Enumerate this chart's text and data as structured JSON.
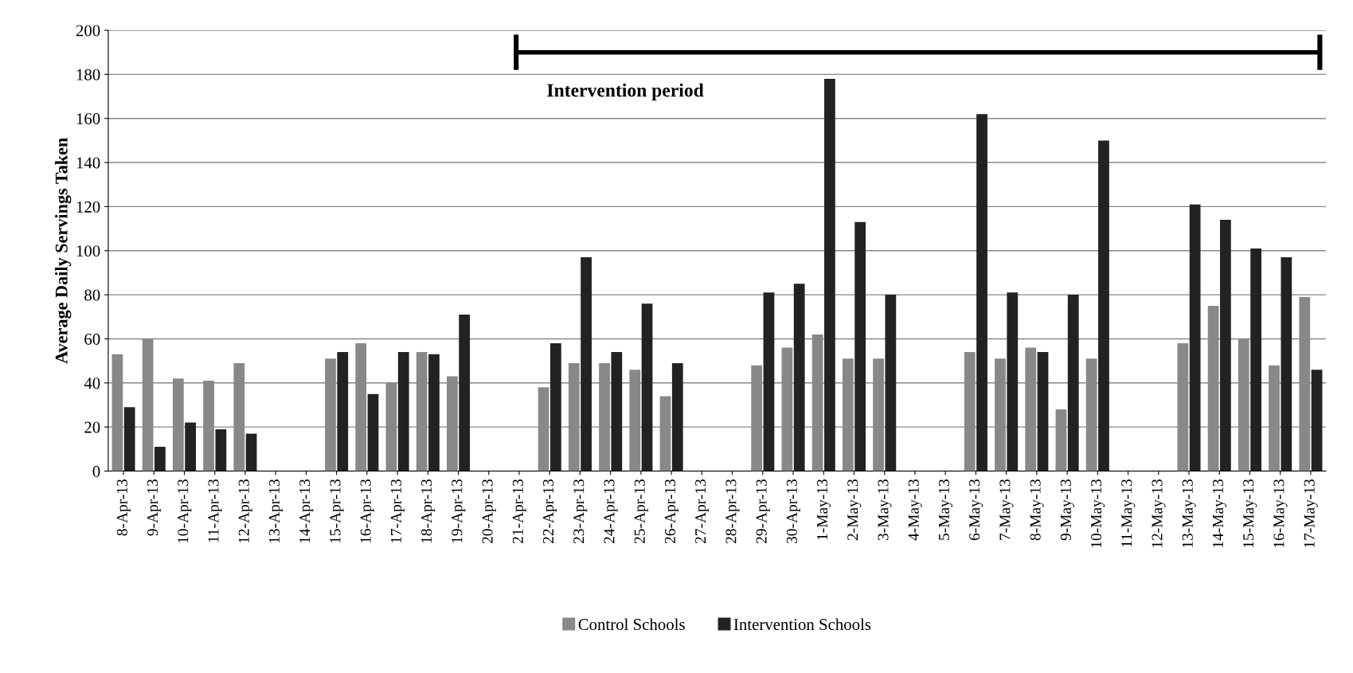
{
  "chart_data": {
    "type": "bar",
    "ylabel": "Average Daily Servings Taken",
    "categories": [
      "8-Apr-13",
      "9-Apr-13",
      "10-Apr-13",
      "11-Apr-13",
      "12-Apr-13",
      "13-Apr-13",
      "14-Apr-13",
      "15-Apr-13",
      "16-Apr-13",
      "17-Apr-13",
      "18-Apr-13",
      "19-Apr-13",
      "20-Apr-13",
      "21-Apr-13",
      "22-Apr-13",
      "23-Apr-13",
      "24-Apr-13",
      "25-Apr-13",
      "26-Apr-13",
      "27-Apr-13",
      "28-Apr-13",
      "29-Apr-13",
      "30-Apr-13",
      "1-May-13",
      "2-May-13",
      "3-May-13",
      "4-May-13",
      "5-May-13",
      "6-May-13",
      "7-May-13",
      "8-May-13",
      "9-May-13",
      "10-May-13",
      "11-May-13",
      "12-May-13",
      "13-May-13",
      "14-May-13",
      "15-May-13",
      "16-May-13",
      "17-May-13"
    ],
    "series": [
      {
        "name": "Control Schools",
        "color": "#888888",
        "values": [
          53,
          60,
          42,
          41,
          49,
          null,
          null,
          51,
          58,
          40,
          54,
          43,
          null,
          null,
          38,
          49,
          49,
          46,
          34,
          null,
          null,
          48,
          56,
          62,
          51,
          51,
          null,
          null,
          54,
          51,
          56,
          28,
          51,
          null,
          null,
          58,
          75,
          60,
          48,
          79
        ]
      },
      {
        "name": "Intervention Schools",
        "color": "#222222",
        "values": [
          29,
          11,
          22,
          19,
          17,
          null,
          null,
          54,
          35,
          54,
          53,
          71,
          null,
          null,
          58,
          97,
          54,
          76,
          49,
          null,
          null,
          81,
          85,
          178,
          113,
          80,
          null,
          null,
          162,
          81,
          54,
          80,
          150,
          null,
          null,
          121,
          114,
          101,
          97,
          46
        ]
      }
    ],
    "ylim": [
      0,
      200
    ],
    "yticks": [
      0,
      20,
      40,
      60,
      80,
      100,
      120,
      140,
      160,
      180,
      200
    ],
    "grid": "y",
    "legend": "bottom",
    "annotations": [
      "Intervention period"
    ]
  }
}
